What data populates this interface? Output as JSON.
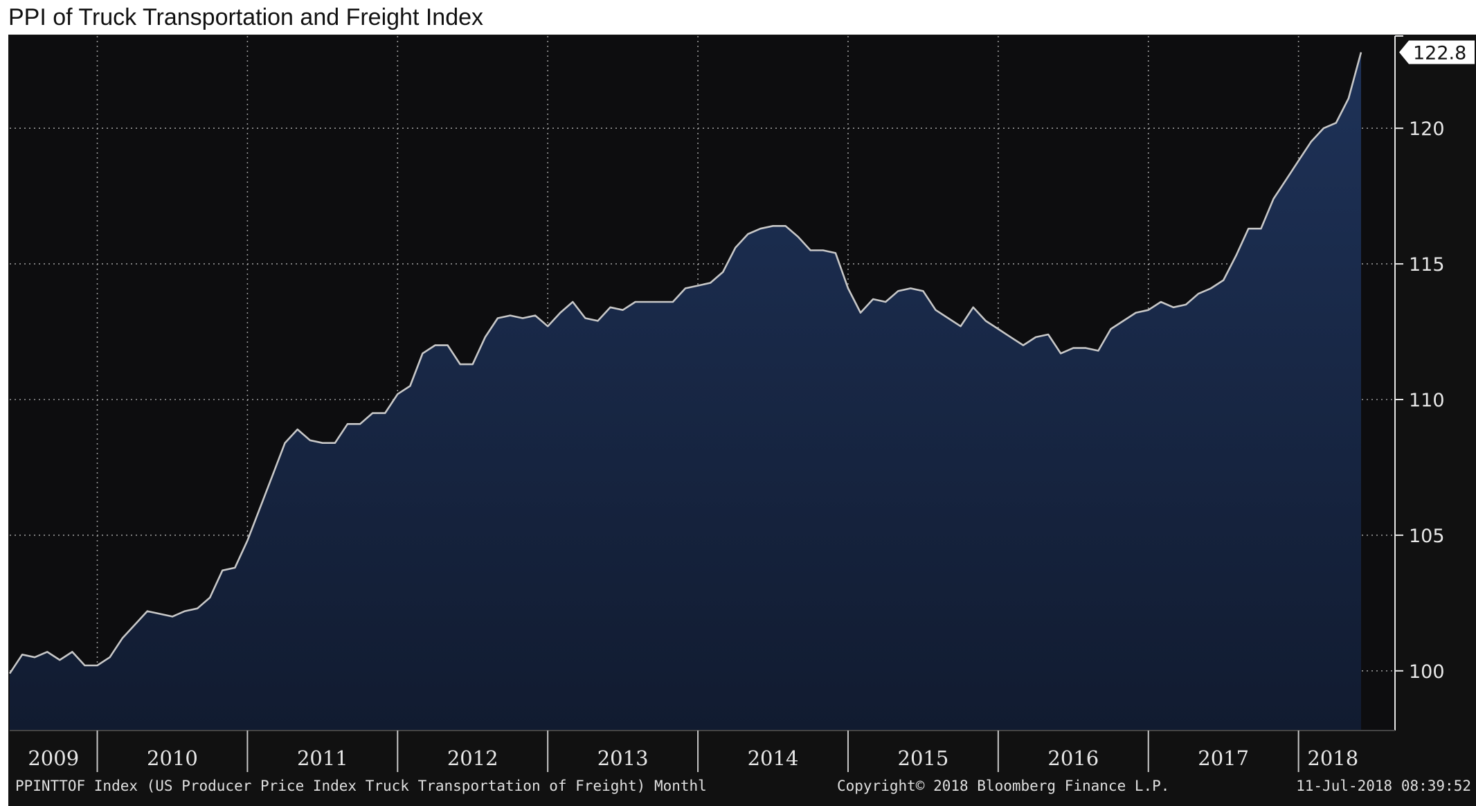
{
  "title": "PPI of Truck Transportation and Freight Index",
  "chart_data": {
    "type": "area",
    "title": "PPI of Truck Transportation and Freight Index",
    "xlabel": "",
    "ylabel": "",
    "ylim": [
      97.8,
      123.4
    ],
    "y_ticks": [
      100,
      105,
      110,
      115,
      120
    ],
    "x_tick_labels": [
      "2009",
      "2010",
      "2011",
      "2012",
      "2013",
      "2014",
      "2015",
      "2016",
      "2017",
      "2018"
    ],
    "x_start": "2009-06",
    "frequency": "monthly",
    "grid": true,
    "y_axis_position": "right",
    "series": [
      {
        "name": "",
        "color": "#c8c8c8",
        "fill_top": "#1e3258",
        "fill_bottom": "#111b30",
        "values": [
          99.9,
          100.6,
          100.5,
          100.7,
          100.4,
          100.7,
          100.2,
          100.2,
          100.5,
          101.2,
          101.7,
          102.2,
          102.1,
          102.0,
          102.2,
          102.3,
          102.7,
          103.7,
          103.8,
          104.8,
          106.0,
          107.2,
          108.4,
          108.9,
          108.5,
          108.4,
          108.4,
          109.1,
          109.1,
          109.5,
          109.5,
          110.2,
          110.5,
          111.7,
          112.0,
          112.0,
          111.3,
          111.3,
          112.3,
          113.0,
          113.1,
          113.0,
          113.1,
          112.7,
          113.2,
          113.6,
          113.0,
          112.9,
          113.4,
          113.3,
          113.6,
          113.6,
          113.6,
          113.6,
          114.1,
          114.2,
          114.3,
          114.7,
          115.6,
          116.1,
          116.3,
          116.4,
          116.4,
          116.0,
          115.5,
          115.5,
          115.4,
          114.1,
          113.2,
          113.7,
          113.6,
          114.0,
          114.1,
          114.0,
          113.3,
          113.0,
          112.7,
          113.4,
          112.9,
          112.6,
          112.3,
          112.0,
          112.3,
          112.4,
          111.7,
          111.9,
          111.9,
          111.8,
          112.6,
          112.9,
          113.2,
          113.3,
          113.6,
          113.4,
          113.5,
          113.9,
          114.1,
          114.4,
          115.3,
          116.3,
          116.3,
          117.4,
          118.1,
          118.8,
          119.5,
          120.0,
          120.2,
          121.1,
          122.8
        ]
      }
    ],
    "last_value_label": "122.8"
  },
  "footer": {
    "index_description": "PPINTTOF Index (US Producer Price Index Truck Transportation of Freight)  Monthl",
    "copyright": "Copyright© 2018 Bloomberg Finance L.P.",
    "timestamp": "11-Jul-2018 08:39:52"
  },
  "colors": {
    "background": "#111111",
    "plot_background": "#0d0d0f",
    "grid": "#9a9a9a",
    "text": "#e8e8e8"
  }
}
